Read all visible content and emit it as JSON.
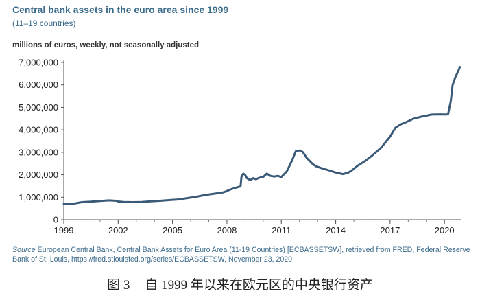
{
  "title": "Central bank assets in the euro area since 1999",
  "subtitle": "(11–19 countries)",
  "source": {
    "label": "Source",
    "text": "European Central Bank, Central Bank Assets for Euro Area (11-19 Countries) [ECBASSETSW], retrieved from FRED, Federal Reserve Bank of St. Louis, https://fred.stlouisfed.org/series/ECBASSETSW, November 23, 2020."
  },
  "caption": {
    "figure_no": "图 3",
    "text": "自 1999 年以来在欧元区的中央银行资产"
  },
  "chart_data": {
    "type": "line",
    "title": "Central bank assets in the euro area since 1999",
    "subtitle": "(11–19 countries)",
    "xlabel": "",
    "ylabel": "millions of euros, weekly, not seasonally adjusted",
    "xlim": [
      1999.0,
      2020.9
    ],
    "ylim": [
      0,
      7000000
    ],
    "xticks": [
      1999,
      2002,
      2005,
      2008,
      2011,
      2014,
      2017,
      2020
    ],
    "xtick_labels": [
      "1999",
      "2002",
      "2005",
      "2008",
      "2011",
      "2014",
      "2017",
      "2020"
    ],
    "yticks": [
      0,
      1000000,
      2000000,
      3000000,
      4000000,
      5000000,
      6000000,
      7000000
    ],
    "ytick_labels": [
      "0",
      "1,000,000",
      "2,000,000",
      "3,000,000",
      "4,000,000",
      "5,000,000",
      "6,000,000",
      "7,000,000"
    ],
    "grid": false,
    "line_color": "#3a5a78",
    "series": [
      {
        "name": "",
        "x": [
          1999.0,
          1999.3,
          1999.6,
          2000.0,
          2000.5,
          2001.0,
          2001.5,
          2001.9,
          2002.0,
          2002.3,
          2002.8,
          2003.3,
          2003.8,
          2004.3,
          2004.8,
          2005.3,
          2005.8,
          2006.3,
          2006.8,
          2007.3,
          2007.8,
          2007.95,
          2008.05,
          2008.3,
          2008.6,
          2008.75,
          2008.8,
          2008.9,
          2009.0,
          2009.1,
          2009.2,
          2009.3,
          2009.45,
          2009.6,
          2009.8,
          2010.0,
          2010.2,
          2010.4,
          2010.6,
          2010.8,
          2011.0,
          2011.3,
          2011.6,
          2011.8,
          2012.0,
          2012.1,
          2012.2,
          2012.4,
          2012.7,
          2012.9,
          2013.2,
          2013.6,
          2014.0,
          2014.4,
          2014.7,
          2014.9,
          2015.2,
          2015.6,
          2016.0,
          2016.5,
          2017.0,
          2017.3,
          2017.6,
          2017.9,
          2018.3,
          2018.8,
          2019.3,
          2019.8,
          2020.1,
          2020.2,
          2020.35,
          2020.45,
          2020.6,
          2020.75,
          2020.85
        ],
        "y": [
          690000,
          700000,
          720000,
          780000,
          800000,
          830000,
          860000,
          840000,
          810000,
          790000,
          780000,
          790000,
          820000,
          840000,
          870000,
          900000,
          960000,
          1020000,
          1100000,
          1160000,
          1220000,
          1260000,
          1300000,
          1380000,
          1450000,
          1480000,
          1900000,
          2050000,
          2000000,
          1850000,
          1800000,
          1760000,
          1850000,
          1800000,
          1870000,
          1900000,
          2050000,
          1950000,
          1920000,
          1950000,
          1900000,
          2150000,
          2650000,
          3050000,
          3080000,
          3060000,
          3000000,
          2750000,
          2500000,
          2380000,
          2300000,
          2200000,
          2100000,
          2030000,
          2100000,
          2200000,
          2400000,
          2600000,
          2850000,
          3200000,
          3700000,
          4100000,
          4250000,
          4350000,
          4500000,
          4600000,
          4680000,
          4690000,
          4680000,
          4700000,
          5300000,
          6000000,
          6350000,
          6600000,
          6800000
        ]
      }
    ]
  }
}
